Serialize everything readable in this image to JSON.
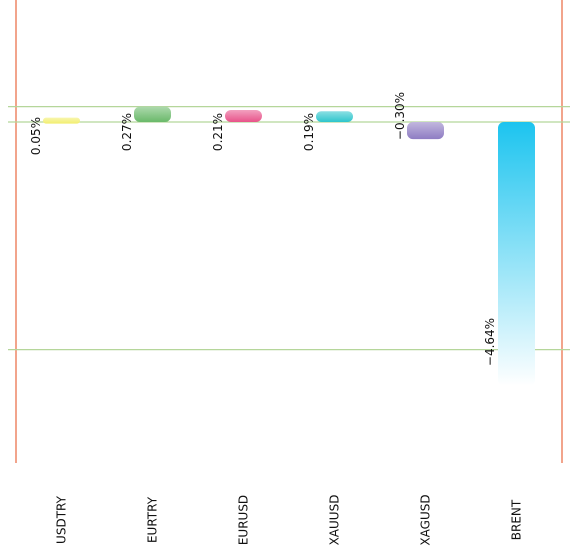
{
  "chart_data": {
    "type": "bar",
    "categories": [
      "USDTRY",
      "EURTRY",
      "EURUSD",
      "XAUUSD",
      "XAGUSD",
      "BRENT"
    ],
    "values": [
      0.05,
      0.27,
      0.21,
      0.19,
      -0.3,
      -4.64
    ],
    "value_labels": [
      "0.05%",
      "0.27%",
      "0.21%",
      "0.19%",
      "−0.30%",
      "−4.64%"
    ],
    "title": "",
    "xlabel": "",
    "ylabel": "",
    "ylim": [
      -4.8,
      0.35
    ],
    "gridlines": [
      0.27,
      0,
      -4.0
    ],
    "grid": true,
    "legend": "none",
    "colors": {
      "bars": [
        "#f2ee6e",
        "#6ab96a",
        "#e8538a",
        "#2ec5cc",
        "#8e7cc3",
        "#1cc4ef"
      ],
      "gridline": "#b5d69a",
      "frame": "#f2a48c"
    }
  }
}
